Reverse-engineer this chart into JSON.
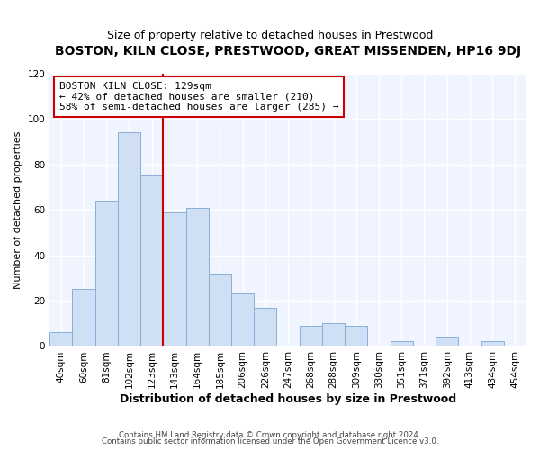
{
  "title": "BOSTON, KILN CLOSE, PRESTWOOD, GREAT MISSENDEN, HP16 9DJ",
  "subtitle": "Size of property relative to detached houses in Prestwood",
  "xlabel": "Distribution of detached houses by size in Prestwood",
  "ylabel": "Number of detached properties",
  "categories": [
    "40sqm",
    "60sqm",
    "81sqm",
    "102sqm",
    "123sqm",
    "143sqm",
    "164sqm",
    "185sqm",
    "206sqm",
    "226sqm",
    "247sqm",
    "268sqm",
    "288sqm",
    "309sqm",
    "330sqm",
    "351sqm",
    "371sqm",
    "392sqm",
    "413sqm",
    "434sqm",
    "454sqm"
  ],
  "values": [
    6,
    25,
    64,
    94,
    75,
    59,
    61,
    32,
    23,
    17,
    0,
    9,
    10,
    9,
    0,
    2,
    0,
    4,
    0,
    2,
    0
  ],
  "bar_color": "#cfe0f5",
  "bar_edge_color": "#8ab0d8",
  "vline_color": "#cc0000",
  "annotation_text": "BOSTON KILN CLOSE: 129sqm\n← 42% of detached houses are smaller (210)\n58% of semi-detached houses are larger (285) →",
  "annotation_box_edge_color": "#cc0000",
  "ylim": [
    0,
    120
  ],
  "yticks": [
    0,
    20,
    40,
    60,
    80,
    100,
    120
  ],
  "footer_line1": "Contains HM Land Registry data © Crown copyright and database right 2024.",
  "footer_line2": "Contains public sector information licensed under the Open Government Licence v3.0.",
  "background_color": "#ffffff",
  "plot_bg_color": "#f0f4ff",
  "title_fontsize": 10,
  "subtitle_fontsize": 9,
  "xlabel_fontsize": 9,
  "ylabel_fontsize": 8
}
